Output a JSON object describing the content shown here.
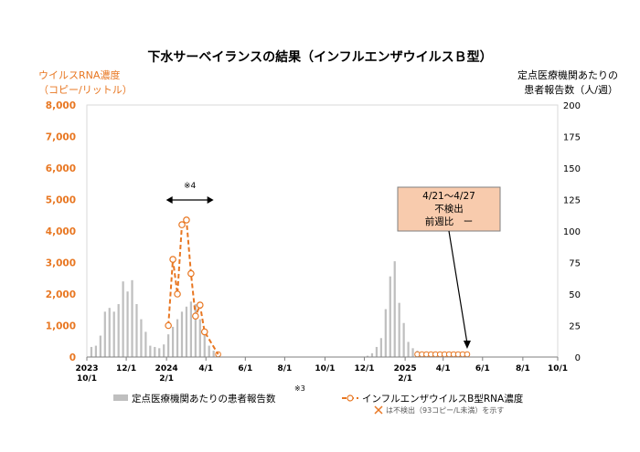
{
  "chart_data": {
    "type": "bar",
    "title": "下水サーベイランスの結果（インフルエンザウイルスＢ型）",
    "left_axis": {
      "label_line1": "ウイルスRNA濃度",
      "label_line2": "（コピー/リットル）",
      "ylim": [
        0,
        8000
      ],
      "ticks": [
        "0",
        "1,000",
        "2,000",
        "3,000",
        "4,000",
        "5,000",
        "6,000",
        "7,000",
        "8,000"
      ],
      "color": "#e87722"
    },
    "right_axis": {
      "label_line1": "定点医療機関あたりの",
      "label_line2": "患者報告数（人/週）",
      "ylim": [
        0,
        200
      ],
      "ticks": [
        "0",
        "25",
        "50",
        "75",
        "100",
        "125",
        "150",
        "175",
        "200"
      ]
    },
    "x_axis": {
      "week_range": [
        0,
        104
      ],
      "ticks": [
        {
          "week": 0,
          "line1": "2023",
          "line2": "10/1"
        },
        {
          "week": 8.7,
          "line1": "12/1",
          "line2": ""
        },
        {
          "week": 17.6,
          "line1": "2024",
          "line2": "2/1"
        },
        {
          "week": 26.3,
          "line1": "4/1",
          "line2": ""
        },
        {
          "week": 35.0,
          "line1": "6/1",
          "line2": ""
        },
        {
          "week": 43.7,
          "line1": "8/1",
          "line2": ""
        },
        {
          "week": 52.6,
          "line1": "10/1",
          "line2": ""
        },
        {
          "week": 61.3,
          "line1": "12/1",
          "line2": ""
        },
        {
          "week": 70.3,
          "line1": "2025",
          "line2": "2/1"
        },
        {
          "week": 78.7,
          "line1": "4/1",
          "line2": ""
        },
        {
          "week": 87.4,
          "line1": "6/1",
          "line2": ""
        },
        {
          "week": 96.3,
          "line1": "8/1",
          "line2": ""
        },
        {
          "week": 104.0,
          "line1": "10/1",
          "line2": ""
        }
      ]
    },
    "series": [
      {
        "name": "定点医療機関あたりの患者報告数",
        "type": "bar",
        "axis": "right",
        "color": "#bfbfbf",
        "weeks": [
          1,
          2,
          3,
          4,
          5,
          6,
          7,
          8,
          9,
          10,
          11,
          12,
          13,
          14,
          15,
          16,
          17,
          18,
          19,
          20,
          21,
          22,
          23,
          24,
          25,
          26,
          27,
          28,
          29,
          62,
          63,
          64,
          65,
          66,
          67,
          68,
          69,
          70,
          71,
          72,
          73,
          74,
          75,
          76,
          77,
          78
        ],
        "values": [
          8,
          9,
          17,
          36,
          39,
          36,
          42,
          60,
          52,
          61,
          42,
          30,
          20,
          9,
          8,
          7,
          10,
          18,
          24,
          30,
          36,
          40,
          44,
          42,
          30,
          20,
          9,
          5,
          2,
          1,
          3,
          8,
          15,
          38,
          64,
          76,
          43,
          27,
          12,
          7,
          5,
          3,
          2,
          2,
          2,
          1
        ]
      },
      {
        "name": "インフルエンザウイルスB型RNA濃度",
        "type": "line",
        "axis": "left",
        "color": "#e87722",
        "style": "dashed",
        "weeks": [
          18,
          19,
          20,
          21,
          22,
          23,
          24,
          25,
          26
        ],
        "values": [
          1000,
          3100,
          2000,
          4200,
          4350,
          2650,
          1300,
          1650,
          800
        ]
      }
    ],
    "not_detected": {
      "weeks": [
        29,
        73,
        74,
        75,
        76,
        77,
        78,
        79,
        80,
        81,
        82,
        83,
        84
      ],
      "value": 0,
      "legend": "は不検出（93コピー/L未満）を示す"
    },
    "annotations": {
      "bracket_label": "※4",
      "bracket_weeks": [
        17.5,
        28
      ],
      "box_lines": [
        "4/21～4/27",
        "不検出",
        "前週比　ー"
      ],
      "box_target_week": 84,
      "footnote_mark": "※3"
    },
    "legend": {
      "bar_label": "定点医療機関あたりの患者報告数",
      "line_label": "インフルエンザウイルスB型RNA濃度"
    }
  }
}
